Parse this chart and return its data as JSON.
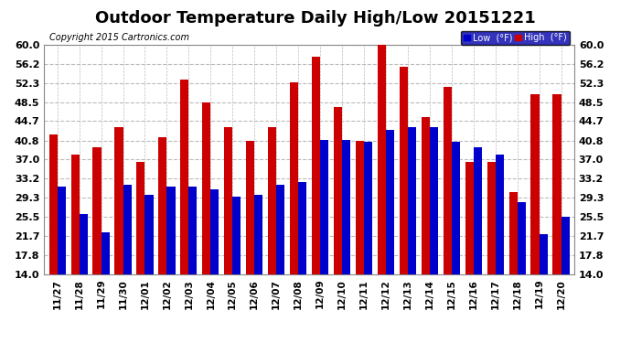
{
  "title": "Outdoor Temperature Daily High/Low 20151221",
  "copyright": "Copyright 2015 Cartronics.com",
  "dates": [
    "11/27",
    "11/28",
    "11/29",
    "11/30",
    "12/01",
    "12/02",
    "12/03",
    "12/04",
    "12/05",
    "12/06",
    "12/07",
    "12/08",
    "12/09",
    "12/10",
    "12/11",
    "12/12",
    "12/13",
    "12/14",
    "12/15",
    "12/16",
    "12/17",
    "12/18",
    "12/19",
    "12/20"
  ],
  "high": [
    42.0,
    38.0,
    39.5,
    43.5,
    36.5,
    41.5,
    53.0,
    48.5,
    43.5,
    40.8,
    43.5,
    52.5,
    57.5,
    47.5,
    40.8,
    60.5,
    55.5,
    45.5,
    51.5,
    36.5,
    36.5,
    30.5,
    50.0,
    50.0
  ],
  "low": [
    31.5,
    26.0,
    22.5,
    32.0,
    30.0,
    31.5,
    31.5,
    31.0,
    29.5,
    30.0,
    32.0,
    32.5,
    41.0,
    41.0,
    40.5,
    43.0,
    43.5,
    43.5,
    40.5,
    39.5,
    38.0,
    28.5,
    22.0,
    25.5
  ],
  "ylim_min": 14.0,
  "ylim_max": 60.0,
  "yticks": [
    14.0,
    17.8,
    21.7,
    25.5,
    29.3,
    33.2,
    37.0,
    40.8,
    44.7,
    48.5,
    52.3,
    56.2,
    60.0
  ],
  "bar_color_low": "#0000cc",
  "bar_color_high": "#cc0000",
  "background_color": "#ffffff",
  "grid_color": "#bbbbbb",
  "title_fontsize": 13,
  "copyright_fontsize": 7,
  "tick_fontsize": 8,
  "legend_low_label": "Low  (°F)",
  "legend_high_label": "High  (°F)",
  "legend_bg": "#0000aa"
}
